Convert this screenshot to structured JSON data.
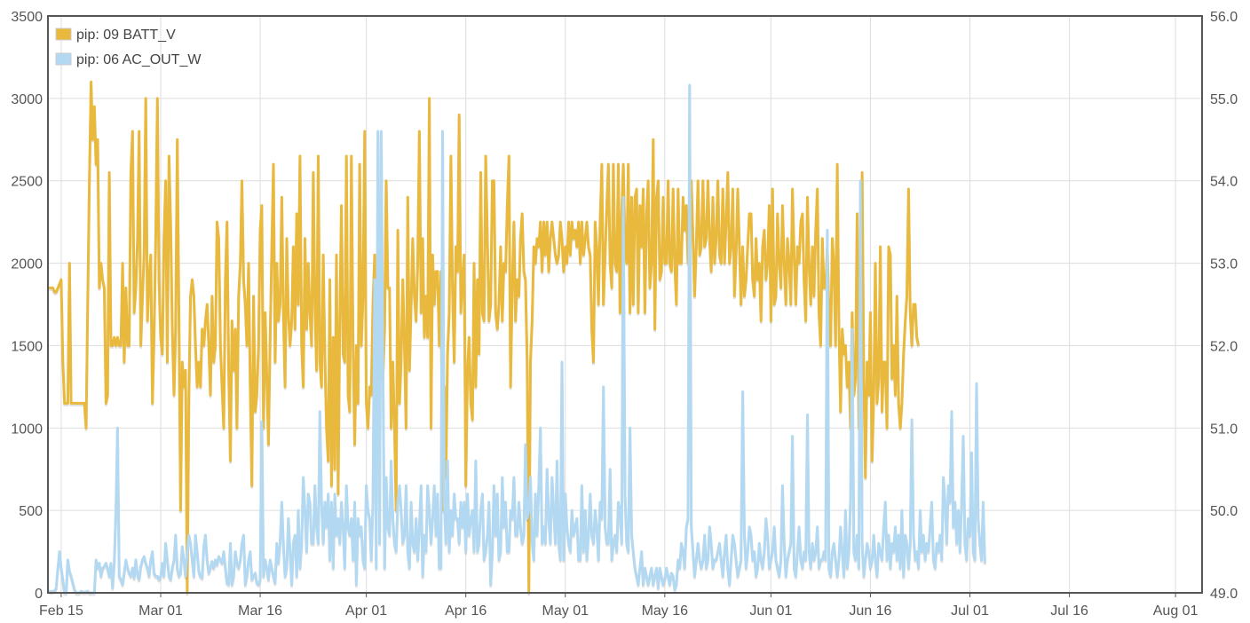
{
  "chart_data": {
    "type": "line",
    "x_range": [
      "2024-02-13",
      "2024-08-05"
    ],
    "x_ticks": [
      {
        "date": "2024-02-15",
        "label": "Feb 15"
      },
      {
        "date": "2024-03-01",
        "label": "Mar 01"
      },
      {
        "date": "2024-03-16",
        "label": "Mar 16"
      },
      {
        "date": "2024-04-01",
        "label": "Apr 01"
      },
      {
        "date": "2024-04-16",
        "label": "Apr 16"
      },
      {
        "date": "2024-05-01",
        "label": "May 01"
      },
      {
        "date": "2024-05-16",
        "label": "May 16"
      },
      {
        "date": "2024-06-01",
        "label": "Jun 01"
      },
      {
        "date": "2024-06-16",
        "label": "Jun 16"
      },
      {
        "date": "2024-07-01",
        "label": "Jul 01"
      },
      {
        "date": "2024-07-16",
        "label": "Jul 16"
      },
      {
        "date": "2024-08-01",
        "label": "Aug 01"
      }
    ],
    "y_left": {
      "range": [
        0,
        3500
      ],
      "ticks": [
        0,
        500,
        1000,
        1500,
        2000,
        2500,
        3000,
        3500
      ],
      "tick_labels": [
        "0",
        "500",
        "1000",
        "1500",
        "2000",
        "2500",
        "3000",
        "3500"
      ]
    },
    "y_right": {
      "range": [
        49.0,
        56.0
      ],
      "ticks": [
        49,
        50,
        51,
        52,
        53,
        54,
        55,
        56
      ],
      "tick_labels": [
        "49.0",
        "50.0",
        "51.0",
        "52.0",
        "53.0",
        "54.0",
        "55.0",
        "56.0"
      ]
    },
    "grid": true,
    "legend_position": "top-left",
    "series": [
      {
        "name": "pip: 09 BATT_V",
        "color": "#e8b93c",
        "axis": "right",
        "x_start": "2024-02-13",
        "x_step_hours": 6,
        "values": [
          52.7,
          52.7,
          52.7,
          52.7,
          52.65,
          52.65,
          52.7,
          52.75,
          52.8,
          51.8,
          51.3,
          51.3,
          51.3,
          53.0,
          51.3,
          51.3,
          51.3,
          51.3,
          51.3,
          51.3,
          51.3,
          51.3,
          51.3,
          51.0,
          52.5,
          54.0,
          55.2,
          54.5,
          54.9,
          54.2,
          54.5,
          52.7,
          53.0,
          52.8,
          52.7,
          51.3,
          51.4,
          54.1,
          52.0,
          52.0,
          52.1,
          52.0,
          52.1,
          52.0,
          52.0,
          53.0,
          51.8,
          52.7,
          52.0,
          52.0,
          54.1,
          54.6,
          52.4,
          52.7,
          53.3,
          54.6,
          52.0,
          52.6,
          53.1,
          55.0,
          52.3,
          52.8,
          53.1,
          51.3,
          52.1,
          53.3,
          55.0,
          52.8,
          52.1,
          51.9,
          53.3,
          54.0,
          51.8,
          54.3,
          53.5,
          52.2,
          51.4,
          52.2,
          54.5,
          52.3,
          50.0,
          51.8,
          51.5,
          51.7,
          49.0,
          51.4,
          52.6,
          52.8,
          52.6,
          52.0,
          51.5,
          51.8,
          51.5,
          52.2,
          52.0,
          52.3,
          52.5,
          52.0,
          51.4,
          52.6,
          51.8,
          52.0,
          53.5,
          53.3,
          52.0,
          51.5,
          51.0,
          52.8,
          53.5,
          51.7,
          50.6,
          52.3,
          51.7,
          52.2,
          51.0,
          52.6,
          53.0,
          54.0,
          52.8,
          52.5,
          52.0,
          53.0,
          51.5,
          50.3,
          52.6,
          51.2,
          51.4,
          52.0,
          53.4,
          53.7,
          51.0,
          52.4,
          51.6,
          50.8,
          52.1,
          53.2,
          54.2,
          51.8,
          53.0,
          52.3,
          52.5,
          53.8,
          52.4,
          51.5,
          53.3,
          52.4,
          52.0,
          52.3,
          53.2,
          52.2,
          53.6,
          52.5,
          54.3,
          52.0,
          51.5,
          53.3,
          52.2,
          53.0,
          52.4,
          52.0,
          54.1,
          52.5,
          51.7,
          54.3,
          51.8,
          51.5,
          53.1,
          51.9,
          51.0,
          50.6,
          52.8,
          50.3,
          52.1,
          50.5,
          53.1,
          50.2,
          52.3,
          53.7,
          51.9,
          51.8,
          54.3,
          51.4,
          51.2,
          54.3,
          52.0,
          50.8,
          52.0,
          51.3,
          54.2,
          52.0,
          52.6,
          54.6,
          51.3,
          51.0,
          51.5,
          51.4,
          52.5,
          53.1,
          51.3,
          52.5,
          53.4,
          52.1,
          51.6,
          52.2,
          54.0,
          52.7,
          52.7,
          51.0,
          51.8,
          51.0,
          50.0,
          53.4,
          51.3,
          51.8,
          52.8,
          52.0,
          51.0,
          53.8,
          51.7,
          52.5,
          53.3,
          52.6,
          52.3,
          53.0,
          54.6,
          52.4,
          53.3,
          52.1,
          52.6,
          52.1,
          55.0,
          51.0,
          53.1,
          52.5,
          52.9,
          52.9,
          52.0,
          52.9,
          50.0,
          51.5,
          50.4,
          51.9,
          52.4,
          54.3,
          52.7,
          51.8,
          53.2,
          52.9,
          54.8,
          52.4,
          52.8,
          53.1,
          50.3,
          51.7,
          52.1,
          51.3,
          51.1,
          53.0,
          51.5,
          52.8,
          51.9,
          54.1,
          52.4,
          52.3,
          54.3,
          53.3,
          52.3,
          52.5,
          54.0,
          54.0,
          52.4,
          52.2,
          52.5,
          53.2,
          52.3,
          53.0,
          52.9,
          53.7,
          54.3,
          51.5,
          52.7,
          53.5,
          52.3,
          52.8,
          52.6,
          53.3,
          53.6,
          52.9,
          52.8,
          51.8,
          49.0,
          51.8,
          52.3,
          53.2,
          53.0,
          53.3,
          53.2,
          53.5,
          52.9,
          53.5,
          53.1,
          53.5,
          52.9,
          53.3,
          53.5,
          53.3,
          53.1,
          53.0,
          53.1,
          53.5,
          53.3,
          52.9,
          53.2,
          53.0,
          53.5,
          53.1,
          53.5,
          53.3,
          53.4,
          53.2,
          53.5,
          53.0,
          53.5,
          53.1,
          53.3,
          53.5,
          53.2,
          53.1,
          52.2,
          51.8,
          53.5,
          53.2,
          52.5,
          53.5,
          54.2,
          52.5,
          53.1,
          53.7,
          54.2,
          53.0,
          52.7,
          54.2,
          53.0,
          52.9,
          54.2,
          52.4,
          53.6,
          54.2,
          53.2,
          53.0,
          54.2,
          52.4,
          53.8,
          52.5,
          53.8,
          53.9,
          52.4,
          53.7,
          53.2,
          53.9,
          52.4,
          53.6,
          54.0,
          52.7,
          53.0,
          54.5,
          52.2,
          53.8,
          54.0,
          52.8,
          52.9,
          53.8,
          53.0,
          53.0,
          54.0,
          53.0,
          52.9,
          53.9,
          53.0,
          52.5,
          53.9,
          53.0,
          53.0,
          53.8,
          53.4,
          53.7,
          53.0,
          53.0,
          54.0,
          53.3,
          52.6,
          53.2,
          54.0,
          53.1,
          53.2,
          54.0,
          53.2,
          53.3,
          54.0,
          53.3,
          52.9,
          53.8,
          53.0,
          53.3,
          54.0,
          53.1,
          53.0,
          53.9,
          53.0,
          53.5,
          54.1,
          53.0,
          53.2,
          53.9,
          52.6,
          53.1,
          53.9,
          53.2,
          52.5,
          53.2,
          52.6,
          52.8,
          53.2,
          53.6,
          53.6,
          52.8,
          52.6,
          53.3,
          52.8,
          53.0,
          52.3,
          53.2,
          53.4,
          52.8,
          53.0,
          53.7,
          52.3,
          53.9,
          52.5,
          52.6,
          53.6,
          53.0,
          52.7,
          53.7,
          53.0,
          52.5,
          53.3,
          53.0,
          52.5,
          53.9,
          53.1,
          52.5,
          53.2,
          53.0,
          53.5,
          53.6,
          52.8,
          52.3,
          53.8,
          53.0,
          52.5,
          53.2,
          52.6,
          53.4,
          53.9,
          52.4,
          52.0,
          53.3,
          52.7,
          52.7,
          53.2,
          52.4,
          52.0,
          53.3,
          53.0,
          52.0,
          54.2,
          52.3,
          51.2,
          52.2,
          51.9,
          52.0,
          51.5,
          51.8,
          51.0,
          52.4,
          51.4,
          51.6,
          53.6,
          51.0,
          51.3,
          54.1,
          51.6,
          50.4,
          51.8,
          51.4,
          52.4,
          50.6,
          51.4,
          53.0,
          51.3,
          51.6,
          53.2,
          51.2,
          51.8,
          51.8,
          51.0,
          53.2,
          53.1,
          51.6,
          52.0,
          51.4,
          52.6,
          51.3,
          51.0,
          51.3,
          51.9,
          52.3,
          52.6,
          53.9,
          52.4,
          52.0,
          52.5,
          52.5,
          52.1,
          52.0
        ]
      },
      {
        "name": "pip: 06 AC_OUT_W",
        "color": "#b3d9f2",
        "axis": "left",
        "x_start": "2024-02-13",
        "x_step_hours": 6,
        "values": [
          10,
          10,
          5,
          10,
          10,
          30,
          150,
          250,
          150,
          80,
          0,
          0,
          200,
          130,
          100,
          60,
          20,
          0,
          0,
          0,
          10,
          5,
          5,
          5,
          10,
          0,
          0,
          0,
          0,
          200,
          150,
          180,
          100,
          150,
          160,
          180,
          150,
          100,
          180,
          30,
          180,
          500,
          1000,
          100,
          80,
          50,
          120,
          200,
          150,
          120,
          100,
          150,
          90,
          200,
          110,
          80,
          160,
          200,
          220,
          180,
          150,
          100,
          200,
          250,
          120,
          100,
          100,
          80,
          100,
          180,
          100,
          300,
          200,
          100,
          80,
          150,
          200,
          350,
          150,
          100,
          120,
          280,
          200,
          100,
          250,
          350,
          300,
          200,
          100,
          350,
          250,
          130,
          100,
          90,
          280,
          350,
          200,
          120,
          150,
          190,
          150,
          200,
          170,
          220,
          200,
          180,
          250,
          150,
          60,
          50,
          300,
          50,
          100,
          250,
          180,
          150,
          200,
          300,
          350,
          50,
          100,
          200,
          250,
          80,
          100,
          120,
          60,
          50,
          80,
          1040,
          100,
          200,
          150,
          80,
          200,
          150,
          100,
          60,
          300,
          180,
          300,
          550,
          300,
          100,
          150,
          450,
          250,
          50,
          300,
          350,
          100,
          500,
          150,
          300,
          700,
          500,
          250,
          600,
          550,
          300,
          300,
          650,
          400,
          300,
          1100,
          550,
          300,
          550,
          400,
          600,
          200,
          550,
          150,
          600,
          350,
          450,
          300,
          550,
          400,
          150,
          650,
          400,
          350,
          450,
          200,
          550,
          50,
          450,
          350,
          400,
          200,
          150,
          650,
          500,
          450,
          200,
          550,
          1900,
          150,
          2800,
          300,
          2800,
          1400,
          150,
          700,
          400,
          350,
          800,
          450,
          300,
          250,
          550,
          650,
          500,
          300,
          350,
          650,
          250,
          150,
          550,
          300,
          250,
          450,
          200,
          400,
          650,
          100,
          350,
          250,
          650,
          500,
          300,
          450,
          650,
          350,
          600,
          150,
          150,
          2800,
          550,
          300,
          800,
          250,
          500,
          350,
          600,
          450,
          450,
          300,
          550,
          400,
          550,
          250,
          600,
          350,
          450,
          500,
          250,
          800,
          250,
          300,
          500,
          600,
          200,
          250,
          350,
          550,
          50,
          250,
          650,
          350,
          600,
          200,
          250,
          700,
          400,
          550,
          250,
          250,
          500,
          450,
          700,
          350,
          350,
          550,
          400,
          300,
          350,
          900,
          450,
          500,
          700,
          300,
          200,
          600,
          350,
          650,
          1000,
          300,
          400,
          300,
          750,
          450,
          300,
          700,
          500,
          300,
          800,
          300,
          200,
          1400,
          200,
          600,
          400,
          300,
          250,
          500,
          350,
          400,
          450,
          200,
          200,
          650,
          250,
          500,
          200,
          350,
          600,
          350,
          300,
          500,
          400,
          200,
          550,
          450,
          1250,
          400,
          300,
          300,
          750,
          200,
          300,
          350,
          250,
          550,
          500,
          300,
          2400,
          600,
          300,
          250,
          1000,
          350,
          250,
          150,
          100,
          50,
          150,
          250,
          50,
          150,
          100,
          50,
          100,
          150,
          50,
          100,
          150,
          30,
          150,
          100,
          50,
          80,
          150,
          100,
          50,
          120,
          100,
          20,
          50,
          200,
          150,
          300,
          250,
          150,
          400,
          450,
          3080,
          400,
          250,
          100,
          200,
          300,
          200,
          150,
          200,
          350,
          150,
          200,
          400,
          300,
          150,
          200,
          200,
          250,
          300,
          200,
          100,
          250,
          350,
          150,
          50,
          200,
          350,
          300,
          200,
          100,
          150,
          200,
          1220,
          350,
          150,
          250,
          400,
          350,
          200,
          250,
          100,
          150,
          300,
          200,
          150,
          250,
          450,
          350,
          150,
          200,
          250,
          400,
          200,
          150,
          100,
          200,
          650,
          300,
          100,
          200,
          250,
          300,
          950,
          150,
          100,
          250,
          400,
          200,
          150,
          250,
          200,
          1080,
          250,
          150,
          300,
          200,
          250,
          400,
          150,
          200,
          200,
          250,
          200,
          2200,
          150,
          100,
          250,
          300,
          200,
          100,
          200,
          400,
          250,
          100,
          500,
          150,
          250,
          550,
          1600,
          250,
          200,
          350,
          150,
          2500,
          300,
          100,
          200,
          300,
          250,
          150,
          200,
          350,
          200,
          100,
          300,
          250,
          200,
          400,
          550,
          200,
          350,
          150,
          300,
          250,
          400,
          200,
          350,
          150,
          500,
          100,
          350,
          300,
          150,
          300,
          1050,
          350,
          200,
          250,
          150,
          500,
          250,
          350,
          200,
          300,
          250,
          400,
          550,
          200,
          150,
          300,
          250,
          350,
          200,
          700,
          550,
          300,
          650,
          550,
          1100,
          400,
          550,
          300,
          500,
          250,
          550,
          950,
          300,
          200,
          450,
          350,
          850,
          250,
          200,
          1270,
          450,
          300,
          200,
          550,
          180
        ]
      }
    ]
  }
}
